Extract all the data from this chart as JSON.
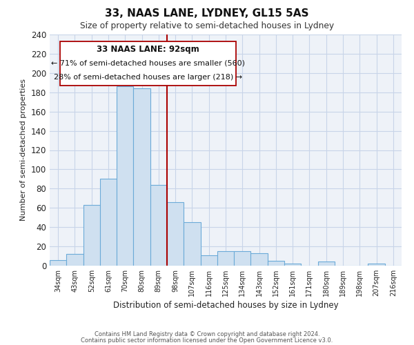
{
  "title": "33, NAAS LANE, LYDNEY, GL15 5AS",
  "subtitle": "Size of property relative to semi-detached houses in Lydney",
  "xlabel": "Distribution of semi-detached houses by size in Lydney",
  "ylabel": "Number of semi-detached properties",
  "footer_line1": "Contains HM Land Registry data © Crown copyright and database right 2024.",
  "footer_line2": "Contains public sector information licensed under the Open Government Licence v3.0.",
  "bin_labels": [
    "34sqm",
    "43sqm",
    "52sqm",
    "61sqm",
    "70sqm",
    "80sqm",
    "89sqm",
    "98sqm",
    "107sqm",
    "116sqm",
    "125sqm",
    "134sqm",
    "143sqm",
    "152sqm",
    "161sqm",
    "171sqm",
    "180sqm",
    "189sqm",
    "198sqm",
    "207sqm",
    "216sqm"
  ],
  "bar_heights": [
    6,
    12,
    63,
    90,
    186,
    184,
    84,
    66,
    45,
    11,
    15,
    15,
    13,
    5,
    2,
    0,
    4,
    0,
    0,
    2,
    0
  ],
  "bar_color": "#cfe0f0",
  "bar_edge_color": "#6baad8",
  "reference_line_color": "#aa0000",
  "annotation_title": "33 NAAS LANE: 92sqm",
  "annotation_line1": "← 71% of semi-detached houses are smaller (560)",
  "annotation_line2": "28% of semi-detached houses are larger (218) →",
  "annotation_box_color": "#ffffff",
  "annotation_box_edge": "#aa0000",
  "ylim": [
    0,
    240
  ],
  "yticks": [
    0,
    20,
    40,
    60,
    80,
    100,
    120,
    140,
    160,
    180,
    200,
    220,
    240
  ],
  "grid_color": "#c8d4e8",
  "background_color": "#eef2f8",
  "plot_bg_color": "#eef2f8",
  "fig_bg_color": "#ffffff"
}
